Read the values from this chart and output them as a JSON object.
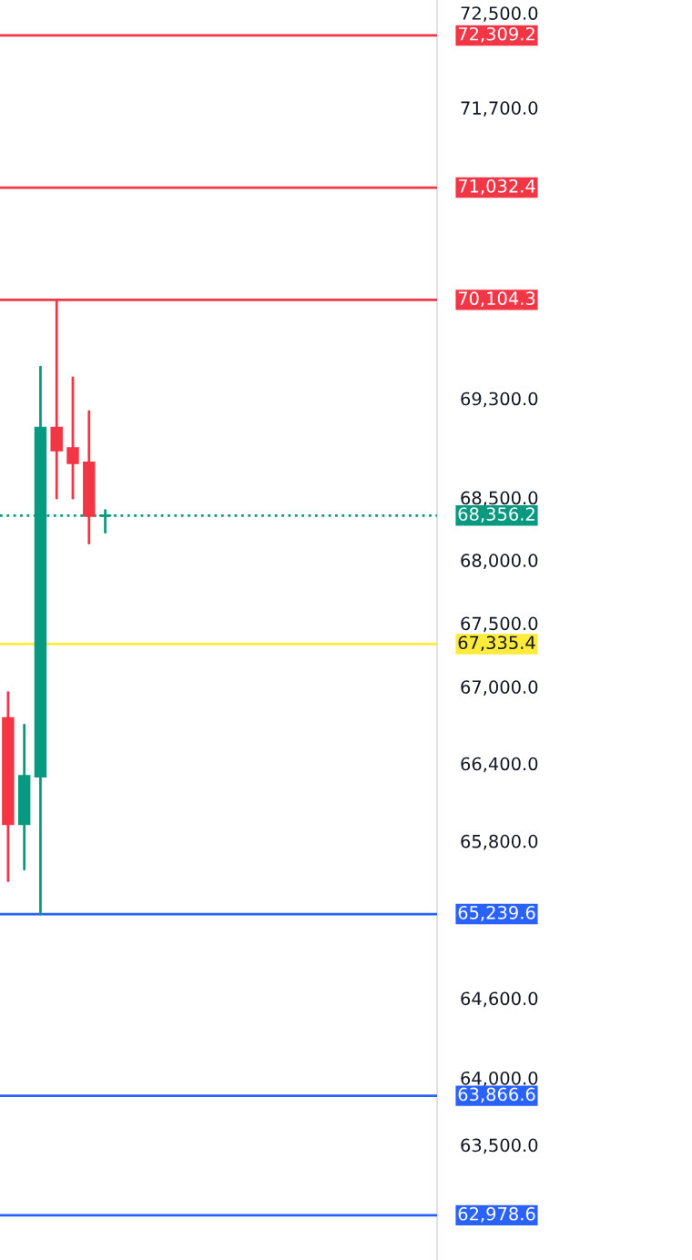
{
  "chart_data": {
    "type": "candlestick",
    "categories": [
      null,
      null,
      null,
      null,
      null,
      null,
      null,
      null,
      null,
      null,
      null,
      null,
      null,
      null,
      null,
      null,
      null,
      null,
      null,
      null,
      null,
      null,
      null,
      null,
      null,
      null,
      null
    ],
    "ohlc": [
      [
        66751,
        66955,
        65494,
        65934
      ],
      [
        65934,
        66700,
        65583,
        66302
      ],
      [
        66302,
        69556,
        65239.6,
        69060
      ],
      [
        69060,
        70104.3,
        68496,
        68882
      ],
      [
        68895,
        69469,
        68496,
        68780
      ],
      [
        68780,
        69195,
        68135,
        68356.2
      ],
      [
        68356.2,
        68397,
        68222,
        68356.2
      ],
      null,
      null,
      null,
      null,
      null,
      null,
      null,
      null,
      null,
      null,
      null,
      null,
      null,
      null,
      null,
      null,
      null,
      null,
      null,
      null
    ],
    "colors": [
      "#f23645",
      "#089981",
      "#089981",
      "#f23645",
      "#f23645",
      "#f23645",
      "#089981",
      null,
      null,
      null,
      null,
      null,
      null,
      null,
      null,
      null,
      null,
      null,
      null,
      null,
      null,
      null,
      null,
      null,
      null,
      null,
      null
    ],
    "log": "y",
    "ylim": [
      62650,
      72610
    ],
    "yticks": [
      {
        "value": 72500,
        "label": "72,500.0"
      },
      {
        "value": 71700,
        "label": "71,700.0"
      },
      {
        "value": 69300,
        "label": "69,300.0"
      },
      {
        "value": 68500,
        "label": "68,500.0"
      },
      {
        "value": 68000,
        "label": "68,000.0"
      },
      {
        "value": 67500,
        "label": "67,500.0"
      },
      {
        "value": 67000,
        "label": "67,000.0"
      },
      {
        "value": 66400,
        "label": "66,400.0"
      },
      {
        "value": 65800,
        "label": "65,800.0"
      },
      {
        "value": 64600,
        "label": "64,600.0"
      },
      {
        "value": 64000,
        "label": "64,000.0"
      },
      {
        "value": 63500,
        "label": "63,500.0"
      }
    ],
    "tick_labels": "y",
    "grid": false,
    "ref_lines": [
      {
        "axis": "y",
        "value": 72309.2,
        "label": "72,309.2",
        "color": "#f23645",
        "line_style": "solid"
      },
      {
        "axis": "y",
        "value": 71032.4,
        "label": "71,032.4",
        "color": "#f23645",
        "line_style": "solid"
      },
      {
        "axis": "y",
        "value": 70104.3,
        "label": "70,104.3",
        "color": "#f23645",
        "line_style": "solid"
      },
      {
        "axis": "y",
        "value": 68356.2,
        "label": "68,356.2",
        "color": "#089981",
        "line_style": "dotted"
      },
      {
        "axis": "y",
        "value": 67335.4,
        "label": "67,335.4",
        "color": "#ffeb3b",
        "line_style": "solid"
      },
      {
        "axis": "y",
        "value": 65239.6,
        "label": "65,239.6",
        "color": "#2962ff",
        "line_style": "solid"
      },
      {
        "axis": "y",
        "value": 63866.6,
        "label": "63,866.6",
        "color": "#2962ff",
        "line_style": "solid"
      },
      {
        "axis": "y",
        "value": 62978.6,
        "label": "62,978.6",
        "color": "#2962ff",
        "line_style": "solid"
      }
    ]
  }
}
